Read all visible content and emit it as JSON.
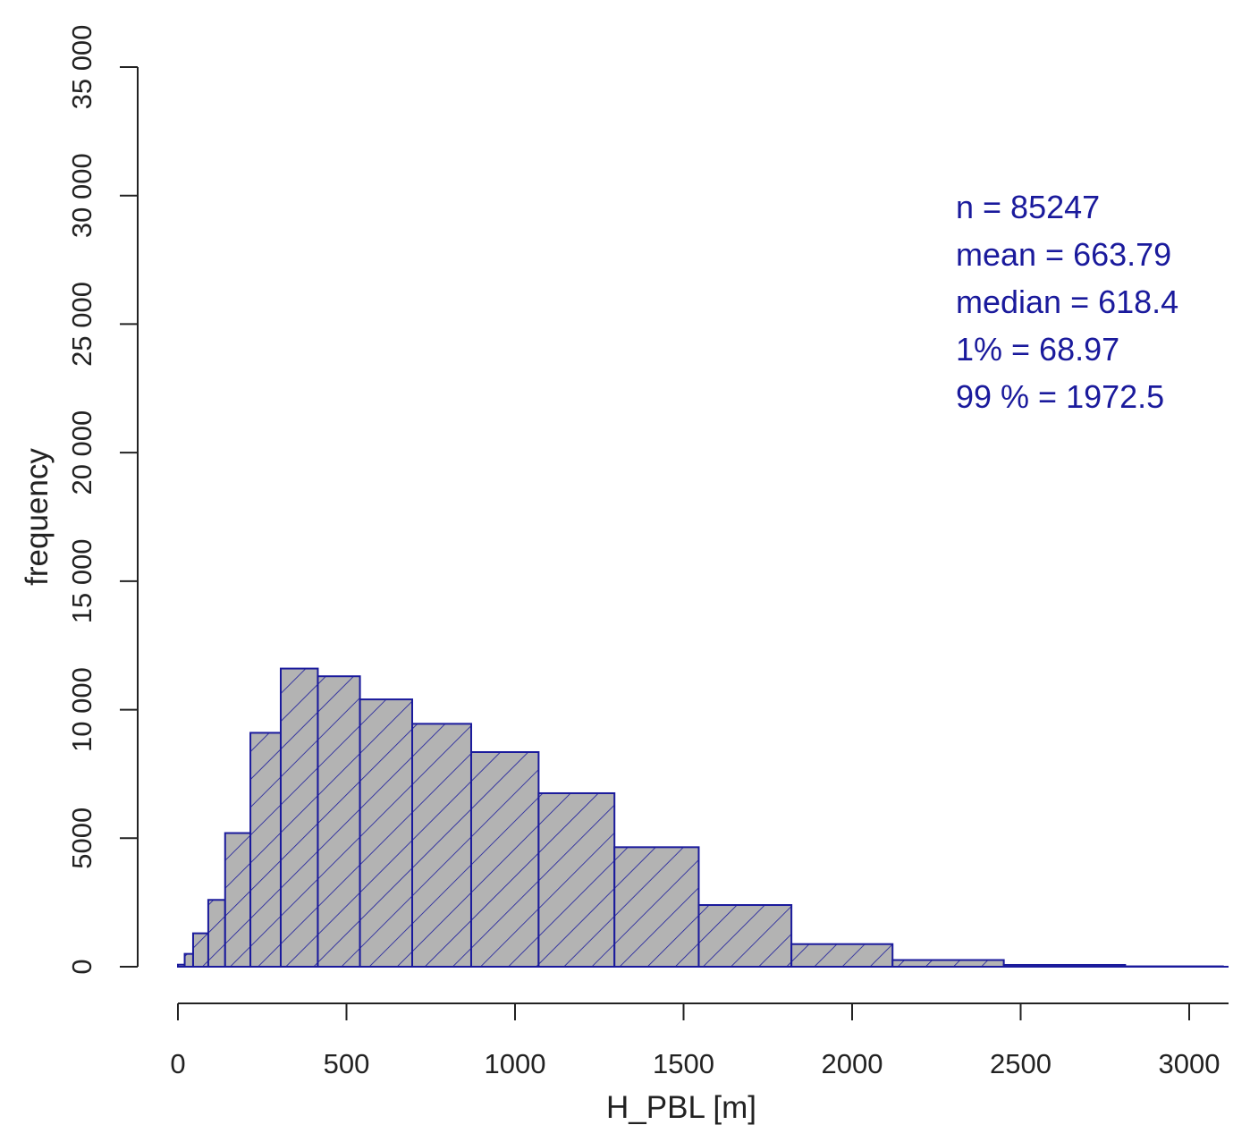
{
  "chart_data": {
    "type": "bar",
    "subtype": "histogram",
    "xlabel": "H_PBL [m]",
    "ylabel": "frequency",
    "xlim": [
      0,
      3100
    ],
    "ylim": [
      0,
      35000
    ],
    "x_ticks": [
      "0",
      "500",
      "1000",
      "1500",
      "2000",
      "2500",
      "3000"
    ],
    "y_ticks": [
      "0",
      "5000",
      "10 000",
      "15 000",
      "20 000",
      "25 000",
      "30 000",
      "35 000"
    ],
    "bins": [
      {
        "x0": 0,
        "x1": 20,
        "count": 80
      },
      {
        "x0": 20,
        "x1": 45,
        "count": 500
      },
      {
        "x0": 45,
        "x1": 90,
        "count": 1300
      },
      {
        "x0": 90,
        "x1": 140,
        "count": 2600
      },
      {
        "x0": 140,
        "x1": 215,
        "count": 5200
      },
      {
        "x0": 215,
        "x1": 305,
        "count": 9100
      },
      {
        "x0": 305,
        "x1": 415,
        "count": 11600
      },
      {
        "x0": 415,
        "x1": 540,
        "count": 11300
      },
      {
        "x0": 540,
        "x1": 695,
        "count": 10400
      },
      {
        "x0": 695,
        "x1": 870,
        "count": 9450
      },
      {
        "x0": 870,
        "x1": 1070,
        "count": 8350
      },
      {
        "x0": 1070,
        "x1": 1295,
        "count": 6750
      },
      {
        "x0": 1295,
        "x1": 1545,
        "count": 4650
      },
      {
        "x0": 1545,
        "x1": 1820,
        "count": 2400
      },
      {
        "x0": 1820,
        "x1": 2120,
        "count": 880
      },
      {
        "x0": 2120,
        "x1": 2450,
        "count": 260
      },
      {
        "x0": 2450,
        "x1": 2810,
        "count": 70
      },
      {
        "x0": 2810,
        "x1": 3100,
        "count": 15
      }
    ],
    "annotations": [
      "n = 85247",
      "mean = 663.79",
      "median = 618.4",
      "1% = 68.97",
      "99 % = 1972.5"
    ],
    "colors": {
      "bar_fill": "#b3b3b3",
      "bar_stroke": "#1a1a9c",
      "hatch": "#1a1a9c",
      "annotation": "#1a1a9c",
      "axis": "#222222"
    }
  }
}
